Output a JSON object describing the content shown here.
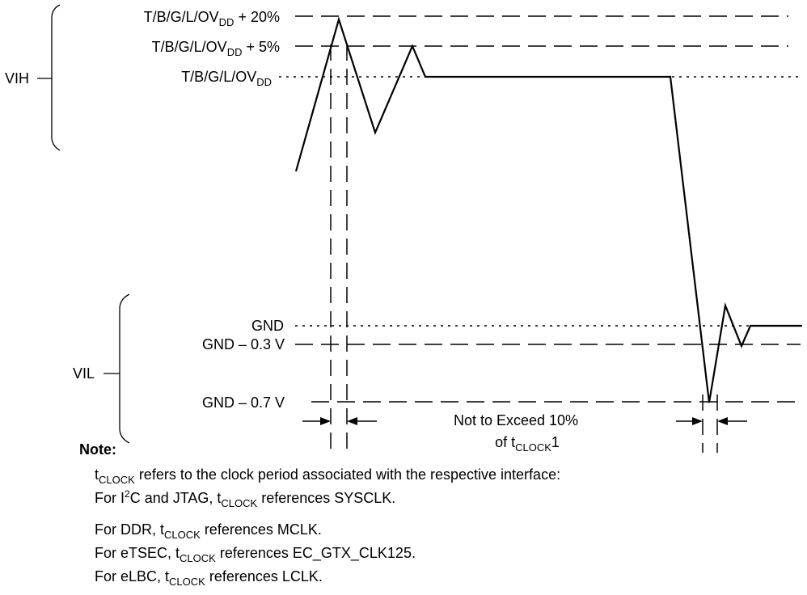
{
  "levels": {
    "vdd_plus20_base": "T/B/G/L/OV",
    "vdd_plus20_sub": "DD",
    "vdd_plus20_tail": " + 20%",
    "vdd_plus5_base": "T/B/G/L/OV",
    "vdd_plus5_sub": "DD",
    "vdd_plus5_tail": " + 5%",
    "vdd_base": "T/B/G/L/OV",
    "vdd_sub": "DD",
    "gnd": "GND",
    "gnd_minus03": "GND – 0.3 V",
    "gnd_minus07": "GND – 0.7 V"
  },
  "brackets": {
    "vih": "VIH",
    "vil": "VIL"
  },
  "annotation": {
    "line1": "Not to Exceed 10%",
    "line2_prefix": "of t",
    "line2_sub": "CLOCK",
    "line2_suffix": "1"
  },
  "note": {
    "heading": "Note:",
    "lines": [
      {
        "t": "t",
        "sub": "CLOCK",
        "rest": " refers to the clock period associated with the respective interface:"
      },
      {
        "pre": "For I",
        "sup": "2",
        "mid": "C and JTAG, t",
        "sub": "CLOCK",
        "rest": " references SYSCLK."
      },
      {
        "pre": "For DDR, t",
        "sub": "CLOCK",
        "rest": " references MCLK."
      },
      {
        "pre": "For eTSEC, t",
        "sub": "CLOCK",
        "rest": " references EC_GTX_CLK125."
      },
      {
        "pre": "For eLBC, t",
        "sub": "CLOCK",
        "rest": " references LCLK."
      }
    ]
  }
}
